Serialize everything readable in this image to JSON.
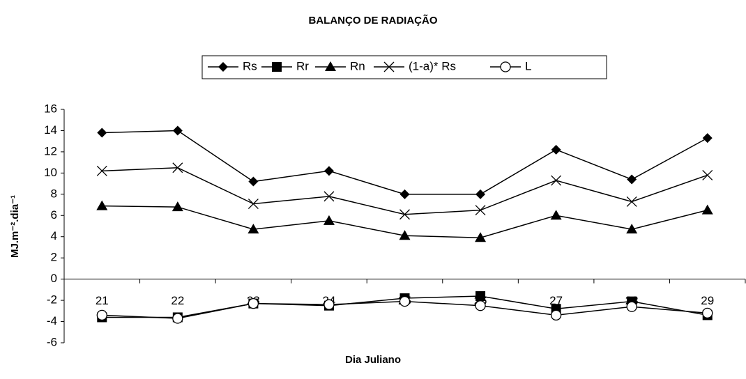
{
  "chart_data": {
    "type": "line",
    "title": "BALANÇO DE RADIAÇÃO",
    "x_label": "Dia Juliano",
    "y_label": "MJ.m⁻².dia⁻¹",
    "categories": [
      "21",
      "22",
      "23",
      "24",
      "25",
      "26",
      "27",
      "28",
      "29"
    ],
    "series": [
      {
        "name": "Rs",
        "color": "#000000",
        "marker": "diamond",
        "values": [
          13.8,
          14.0,
          9.2,
          10.2,
          8.0,
          8.0,
          12.2,
          9.4,
          13.3
        ]
      },
      {
        "name": "Rr",
        "color": "#000000",
        "marker": "square",
        "values": [
          -3.6,
          -3.6,
          -2.3,
          -2.5,
          -1.8,
          -1.6,
          -2.8,
          -2.1,
          -3.4
        ]
      },
      {
        "name": "Rn",
        "color": "#000000",
        "marker": "triangle",
        "values": [
          6.9,
          6.8,
          4.7,
          5.5,
          4.1,
          3.9,
          6.0,
          4.7,
          6.5
        ]
      },
      {
        "name": "(1-a)* Rs",
        "color": "#000000",
        "marker": "x",
        "values": [
          10.2,
          10.5,
          7.1,
          7.8,
          6.1,
          6.5,
          9.3,
          7.3,
          9.8
        ]
      },
      {
        "name": "L",
        "color": "#000000",
        "marker": "circle",
        "values": [
          -3.4,
          -3.7,
          -2.3,
          -2.4,
          -2.1,
          -2.5,
          -3.4,
          -2.6,
          -3.2
        ]
      }
    ],
    "ylim": [
      -6,
      16
    ],
    "yticks": [
      -6,
      -4,
      -2,
      0,
      2,
      4,
      6,
      8,
      10,
      12,
      14,
      16
    ],
    "grid": false,
    "legend": "top"
  }
}
